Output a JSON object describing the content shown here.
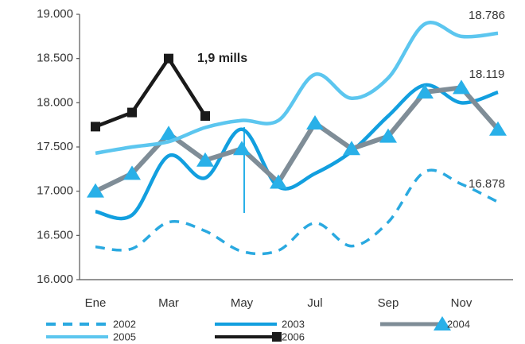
{
  "chart_data": {
    "type": "line",
    "annotation": "1,9 mills",
    "categories": [
      "Ene",
      null,
      "Mar",
      null,
      "May",
      null,
      "Jul",
      null,
      "Sep",
      null,
      "Nov",
      null
    ],
    "ylim": [
      16000,
      19000
    ],
    "yticks": [
      {
        "value": 16000,
        "label": "16.000"
      },
      {
        "value": 16500,
        "label": "16.500"
      },
      {
        "value": 17000,
        "label": "17.000"
      },
      {
        "value": 17500,
        "label": "17.500"
      },
      {
        "value": 18000,
        "label": "18.000"
      },
      {
        "value": 18500,
        "label": "18.500"
      },
      {
        "value": 19000,
        "label": "19.000"
      }
    ],
    "grid": false,
    "legend": "bottom",
    "series": [
      {
        "name": "2002",
        "color": "#2aa9e0",
        "line_style": "dashed",
        "smooth": true,
        "values": [
          16370,
          16350,
          16650,
          16550,
          16320,
          16330,
          16640,
          16380,
          16650,
          17220,
          17080,
          16878
        ],
        "value_labels": [
          null,
          null,
          null,
          null,
          null,
          null,
          null,
          null,
          null,
          null,
          null,
          "16.878"
        ]
      },
      {
        "name": "2003",
        "color": "#129fdf",
        "line_style": "solid",
        "smooth": true,
        "values": [
          16770,
          16730,
          17400,
          17150,
          17700,
          17050,
          17200,
          17450,
          17850,
          18200,
          18000,
          18119
        ],
        "value_labels": [
          null,
          null,
          null,
          null,
          null,
          null,
          null,
          null,
          null,
          null,
          null,
          "18.119"
        ]
      },
      {
        "name": "2004",
        "color": "#7f8d97",
        "line_style": "solid",
        "smooth": false,
        "marker": "triangle",
        "marker_color": "#29b0e8",
        "values": [
          17000,
          17200,
          17650,
          17350,
          17480,
          17100,
          17770,
          17480,
          17620,
          18120,
          18170,
          17700
        ]
      },
      {
        "name": "2005",
        "color": "#5cc6ef",
        "line_style": "solid",
        "smooth": true,
        "values": [
          17430,
          17500,
          17560,
          17720,
          17800,
          17800,
          18320,
          18050,
          18280,
          18890,
          18750,
          18786
        ],
        "value_labels": [
          null,
          null,
          null,
          null,
          null,
          null,
          null,
          null,
          null,
          null,
          null,
          "18.786"
        ]
      },
      {
        "name": "2006",
        "color": "#1a1a1a",
        "line_style": "solid",
        "smooth": false,
        "marker": "square",
        "marker_color": "#1a1a1a",
        "values": [
          17730,
          17890,
          18500,
          17850,
          null,
          null,
          null,
          null,
          null,
          null,
          null,
          null
        ]
      }
    ]
  }
}
